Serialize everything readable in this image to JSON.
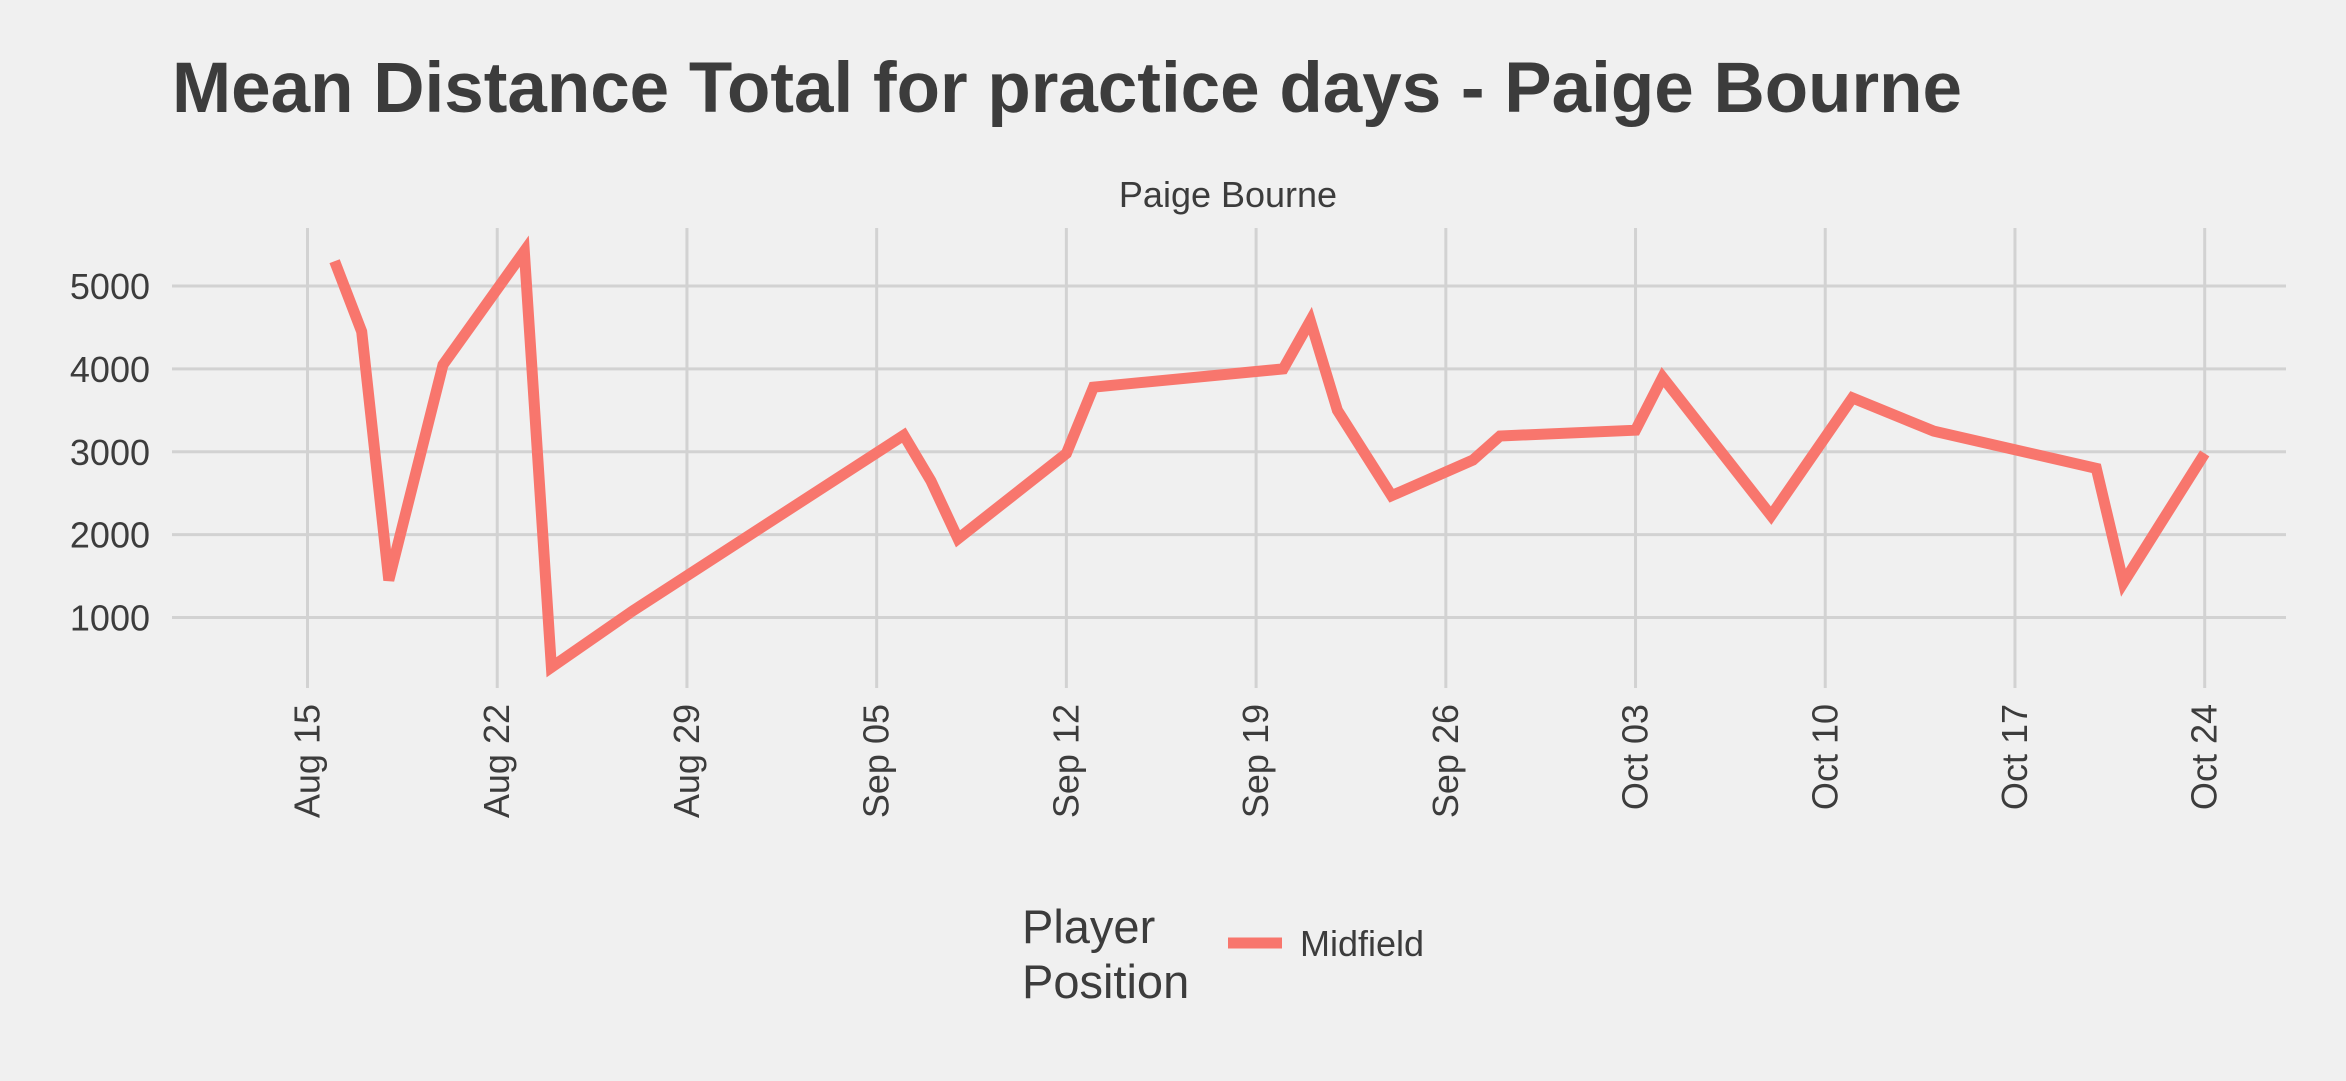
{
  "chart_data": {
    "type": "line",
    "title": "Mean Distance Total for practice days -  Paige Bourne",
    "facet_label": "Paige Bourne",
    "xlabel": "",
    "ylabel": "",
    "x_ticks": [
      "Aug 15",
      "Aug 22",
      "Aug 29",
      "Sep 05",
      "Sep 12",
      "Sep 19",
      "Sep 26",
      "Oct 03",
      "Oct 10",
      "Oct 17",
      "Oct 24"
    ],
    "y_ticks": [
      1000,
      2000,
      3000,
      4000,
      5000
    ],
    "ylim": [
      150,
      5700
    ],
    "xlim": [
      "2022-08-10",
      "2022-10-27"
    ],
    "grid": true,
    "legend": {
      "title_lines": [
        "Player",
        "Position"
      ],
      "position": "bottom",
      "entries": [
        {
          "label": "Midfield",
          "color": "#f8766d"
        }
      ]
    },
    "series": [
      {
        "name": "Midfield",
        "color": "#f8766d",
        "points": [
          {
            "x": "2022-08-16",
            "y": 5300
          },
          {
            "x": "2022-08-17",
            "y": 4450
          },
          {
            "x": "2022-08-18",
            "y": 1450
          },
          {
            "x": "2022-08-20",
            "y": 4050
          },
          {
            "x": "2022-08-23",
            "y": 5420
          },
          {
            "x": "2022-08-24",
            "y": 400
          },
          {
            "x": "2022-08-27",
            "y": 1080
          },
          {
            "x": "2022-09-06",
            "y": 3200
          },
          {
            "x": "2022-09-07",
            "y": 2650
          },
          {
            "x": "2022-09-08",
            "y": 1950
          },
          {
            "x": "2022-09-12",
            "y": 2980
          },
          {
            "x": "2022-09-13",
            "y": 3780
          },
          {
            "x": "2022-09-20",
            "y": 4000
          },
          {
            "x": "2022-09-21",
            "y": 4580
          },
          {
            "x": "2022-09-22",
            "y": 3500
          },
          {
            "x": "2022-09-24",
            "y": 2470
          },
          {
            "x": "2022-09-27",
            "y": 2900
          },
          {
            "x": "2022-09-28",
            "y": 3190
          },
          {
            "x": "2022-10-03",
            "y": 3260
          },
          {
            "x": "2022-10-04",
            "y": 3900
          },
          {
            "x": "2022-10-08",
            "y": 2230
          },
          {
            "x": "2022-10-11",
            "y": 3650
          },
          {
            "x": "2022-10-14",
            "y": 3250
          },
          {
            "x": "2022-10-20",
            "y": 2800
          },
          {
            "x": "2022-10-21",
            "y": 1420
          },
          {
            "x": "2022-10-24",
            "y": 2980
          }
        ]
      }
    ]
  }
}
